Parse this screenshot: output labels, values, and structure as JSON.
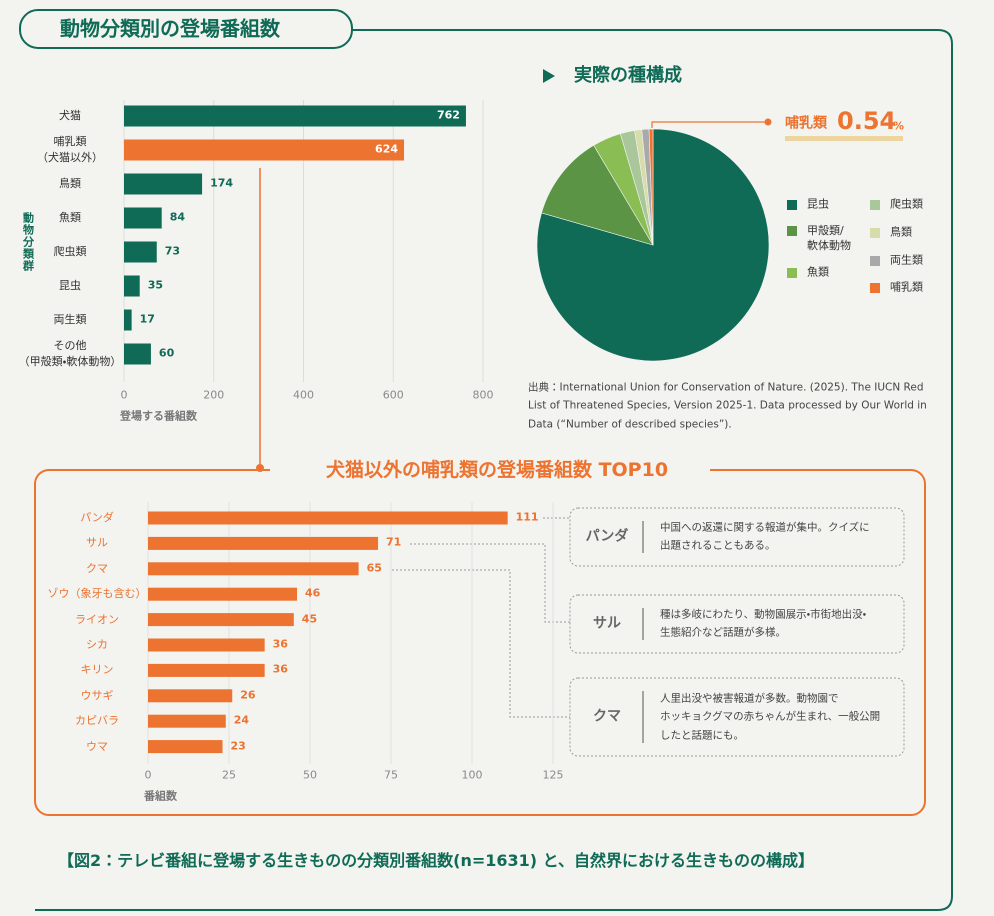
{
  "header": {
    "title": "動物分類別の登場番組数"
  },
  "chart_data": [
    {
      "type": "bar",
      "categories": [
        "犬猫",
        "哺乳類\n（犬猫以外）",
        "鳥類",
        "魚類",
        "爬虫類",
        "昆虫",
        "両生類",
        "その他\n（甲殻類・軟体動物）"
      ],
      "values": [
        762,
        624,
        174,
        84,
        73,
        35,
        17,
        60
      ],
      "colors": [
        "#0f6b56",
        "#ec7330",
        "#0f6b56",
        "#0f6b56",
        "#0f6b56",
        "#0f6b56",
        "#0f6b56",
        "#0f6b56"
      ],
      "xlim": [
        0,
        800
      ],
      "xticks": [
        0,
        200,
        400,
        600,
        800
      ],
      "xlabel": "登場する番組数",
      "ylabel": "動物分類群",
      "grid": true
    },
    {
      "type": "pie",
      "title": "実際の種構成",
      "categories": [
        "昆虫",
        "甲殻類/\n軟体動物",
        "魚類",
        "爬虫類",
        "鳥類",
        "両生類",
        "哺乳類"
      ],
      "values": [
        79.5,
        12,
        4,
        2,
        1,
        1,
        0.54
      ],
      "colors": [
        "#0f6b56",
        "#5a9444",
        "#8bbd55",
        "#a9c79a",
        "#d6dcaa",
        "#a9a9a9",
        "#ec7330"
      ],
      "annotation_unit": "%",
      "source": "出典：International Union for Conservation of Nature. (2025). The IUCN Red List of Threatened Species, Version 2025-1. Data processed by Our World in Data (“Number of described species”)."
    },
    {
      "type": "bar",
      "title": "犬猫以外の哺乳類の登場番組数 TOP10",
      "categories": [
        "パンダ",
        "サル",
        "クマ",
        "ゾウ（象牙も含む）",
        "ライオン",
        "シカ",
        "キリン",
        "ウサギ",
        "カピバラ",
        "ウマ"
      ],
      "values": [
        111,
        71,
        65,
        46,
        45,
        36,
        36,
        26,
        24,
        23
      ],
      "color": "#ec7330",
      "xlim": [
        0,
        125
      ],
      "xticks": [
        0,
        25,
        50,
        75,
        100,
        125
      ],
      "xlabel": "番組数",
      "grid": true,
      "callouts": [
        {
          "label": "パンダ",
          "text": "中国への返還に関する報道が集中。クイズに\n出題されることもある。"
        },
        {
          "label": "サル",
          "text": "種は多岐にわたり、動物園展示・市街地出没・\n生態紹介など話題が多様。"
        },
        {
          "label": "クマ",
          "text": "人里出没や被害報道が多数。動物園で\nホッキョクグマの赤ちゃんが生まれ、一般公開\nしたと話題にも。"
        }
      ]
    }
  ],
  "caption": "【図2：テレビ番組に登場する生きものの分類別番組数(n=1631) と、自然界における生きものの構成】"
}
